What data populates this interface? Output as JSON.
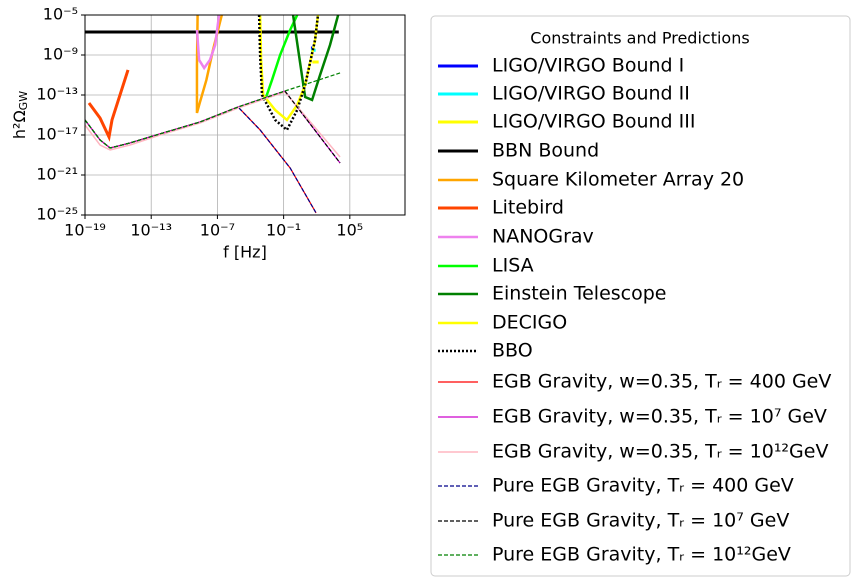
{
  "chart_data": {
    "type": "line",
    "xlabel": "f [Hz]",
    "ylabel": "h²Ω",
    "ylabel_sub": "GW",
    "xscale": "log",
    "yscale": "log",
    "grid": true,
    "xlim": [
      1e-19,
      10000000000.0
    ],
    "ylim": [
      1e-25,
      1e-05
    ],
    "xticks": [
      {
        "value": 1e-19,
        "label": "10⁻¹⁹"
      },
      {
        "value": 1e-13,
        "label": "10⁻¹³"
      },
      {
        "value": 1e-07,
        "label": "10⁻⁷"
      },
      {
        "value": 0.1,
        "label": "10⁻¹"
      },
      {
        "value": 100000.0,
        "label": "10⁵"
      }
    ],
    "yticks": [
      {
        "value": 1e-25,
        "label": "10⁻²⁵"
      },
      {
        "value": 1e-21,
        "label": "10⁻²¹"
      },
      {
        "value": 1e-17,
        "label": "10⁻¹⁷"
      },
      {
        "value": 1e-13,
        "label": "10⁻¹³"
      },
      {
        "value": 1e-09,
        "label": "10⁻⁹"
      },
      {
        "value": 1e-05,
        "label": "10⁻⁵"
      }
    ],
    "legend_title": "Constraints and Predictions",
    "legend_position": "outside right",
    "series": [
      {
        "name": "LIGO/VIRGO Bound I",
        "color": "#0000ff",
        "linewidth": 3,
        "x": [
          30,
          60
        ],
        "values": [
          5e-09,
          5e-09
        ]
      },
      {
        "name": "LIGO/VIRGO Bound II",
        "color": "#00ffff",
        "linewidth": 3,
        "x": [
          30,
          80
        ],
        "values": [
          3e-09,
          3e-09
        ]
      },
      {
        "name": "LIGO/VIRGO Bound III",
        "color": "#ffff00",
        "linewidth": 3,
        "x": [
          40,
          150
        ],
        "values": [
          2e-10,
          2e-10
        ]
      },
      {
        "name": "BBN Bound",
        "color": "#000000",
        "linewidth": 3,
        "x": [
          1e-19,
          10000.0
        ],
        "values": [
          2e-07,
          2e-07
        ]
      },
      {
        "name": "Square Kilometer Array 20",
        "color": "#ffa500",
        "linewidth": 2.5,
        "x": [
          1.6e-09,
          1.4e-09,
          1.4e-09,
          2.5e-09,
          1e-08,
          4e-08,
          2.5e-07
        ],
        "values": [
          1e-05,
          1e-10,
          1.6e-15,
          1.6e-14,
          3.2e-12,
          3.2e-09,
          1e-05
        ]
      },
      {
        "name": "Litebird",
        "color": "#ff4500",
        "linewidth": 3,
        "x": [
          2.3e-19,
          2.3e-18,
          1.5e-17,
          2.8e-17,
          7.9e-16
        ],
        "values": [
          1.6e-14,
          5e-16,
          6.3e-18,
          3.2e-16,
          3.2e-11
        ]
      },
      {
        "name": "NANOGrav",
        "color": "#ee82ee",
        "linewidth": 2.5,
        "x": [
          1.4e-09,
          2.2e-09,
          6.3e-09,
          2.1e-08,
          6.3e-08,
          1.4e-07
        ],
        "values": [
          3.2e-07,
          3.2e-10,
          5e-11,
          3.2e-10,
          1e-08,
          1e-05
        ]
      },
      {
        "name": "LISA",
        "color": "#00ff00",
        "linewidth": 2.5,
        "x": [
          0.0026,
          0.0089,
          0.048,
          0.39,
          1.7
        ],
        "values": [
          6.3e-14,
          3.2e-12,
          1e-09,
          3.2e-07,
          1e-05
        ]
      },
      {
        "name": "Einstein Telescope",
        "color": "#008000",
        "linewidth": 2.5,
        "x": [
          0.72,
          8.9,
          38,
          200,
          1600,
          8700
        ],
        "values": [
          1e-05,
          6.3e-14,
          3.2e-14,
          1e-11,
          1e-08,
          1e-05
        ]
      },
      {
        "name": "DECIGO",
        "color": "#ffff00",
        "linewidth": 2.5,
        "x": [
          0.00074,
          0.00091,
          0.0014,
          0.017,
          0.2,
          1.7,
          8.9,
          71,
          130
        ],
        "values": [
          1e-05,
          3.2e-10,
          1e-13,
          3.2e-15,
          3.2e-16,
          1e-14,
          1e-12,
          3.2e-08,
          1e-05
        ]
      },
      {
        "name": "BBO",
        "color": "#000000",
        "linewidth": 2.5,
        "linestyle": "dotted",
        "x": [
          0.0006,
          0.00074,
          0.0011,
          0.017,
          0.2,
          1.7,
          8.9,
          71,
          130
        ],
        "values": [
          1e-05,
          1e-09,
          1e-13,
          3.2e-16,
          3.2e-17,
          3.2e-15,
          1e-12,
          3.2e-08,
          1e-05
        ]
      },
      {
        "name": "EGB Gravity,  w=0.35, Tᵣ = 400 GeV",
        "color": "#ff0000",
        "linewidth": 1.2,
        "x": [
          1e-19,
          2.3e-18,
          1.9e-17,
          1.2e-15,
          6.3e-13,
          2.7e-09,
          7.4e-06,
          0.00074,
          0.39,
          87
        ],
        "values": [
          3.2e-16,
          3.2e-18,
          5e-19,
          1.6e-18,
          1.3e-17,
          2e-16,
          6.3e-15,
          3.2e-17,
          5e-21,
          1.6e-25
        ]
      },
      {
        "name": "EGB Gravity,  w=0.35, Tᵣ = 10⁷ GeV",
        "color": "#cc00cc",
        "linewidth": 1.2,
        "x": [
          1e-19,
          2.3e-18,
          1.9e-17,
          1.2e-15,
          6.3e-13,
          2.7e-09,
          7.4e-06,
          0.13,
          13000.0
        ],
        "values": [
          3.2e-16,
          3.2e-18,
          5e-19,
          1.6e-18,
          1.3e-17,
          2e-16,
          6.3e-15,
          2.5e-13,
          1.6e-20
        ]
      },
      {
        "name": "EGB Gravity,  w=0.35, Tᵣ = 10¹²GeV",
        "color": "#ffb6c1",
        "linewidth": 1.5,
        "x": [
          1e-19,
          2.3e-18,
          1.9e-17,
          1.2e-15,
          6.3e-13,
          2.7e-09,
          7.4e-06,
          0.13,
          13000.0
        ],
        "values": [
          1e-16,
          1e-18,
          3.2e-19,
          1e-18,
          1e-17,
          1.6e-16,
          5e-15,
          2e-13,
          6.3e-20
        ]
      },
      {
        "name": "Pure EGB Gravity, Tᵣ = 400 GeV",
        "color": "#00008b",
        "linewidth": 1.2,
        "linestyle": "dashed",
        "x": [
          1e-19,
          2.3e-18,
          1.9e-17,
          1.2e-15,
          6.3e-13,
          2.7e-09,
          7.4e-06,
          0.00074,
          0.39,
          87
        ],
        "values": [
          3.2e-16,
          3.2e-18,
          5e-19,
          1.6e-18,
          1.3e-17,
          2e-16,
          6.3e-15,
          3.2e-17,
          5e-21,
          1.6e-25
        ]
      },
      {
        "name": "Pure EGB Gravity, Tᵣ = 10⁷ GeV",
        "color": "#000000",
        "linewidth": 1.2,
        "linestyle": "dashed",
        "x": [
          1e-19,
          2.3e-18,
          1.9e-17,
          1.2e-15,
          6.3e-13,
          2.7e-09,
          7.4e-06,
          0.13,
          13000.0
        ],
        "values": [
          3.2e-16,
          3.2e-18,
          5e-19,
          1.6e-18,
          1.3e-17,
          2e-16,
          6.3e-15,
          2.5e-13,
          1.6e-20
        ]
      },
      {
        "name": "Pure EGB Gravity, Tᵣ = 10¹²GeV",
        "color": "#008000",
        "linewidth": 1.2,
        "linestyle": "dashed",
        "x": [
          1e-19,
          2.3e-18,
          1.9e-17,
          1.2e-15,
          6.3e-13,
          2.7e-09,
          7.4e-06,
          0.13,
          13000.0
        ],
        "values": [
          3.2e-16,
          3.2e-18,
          5e-19,
          1.6e-18,
          1.3e-17,
          2e-16,
          6.3e-15,
          2.5e-13,
          1.6e-11
        ]
      }
    ]
  }
}
